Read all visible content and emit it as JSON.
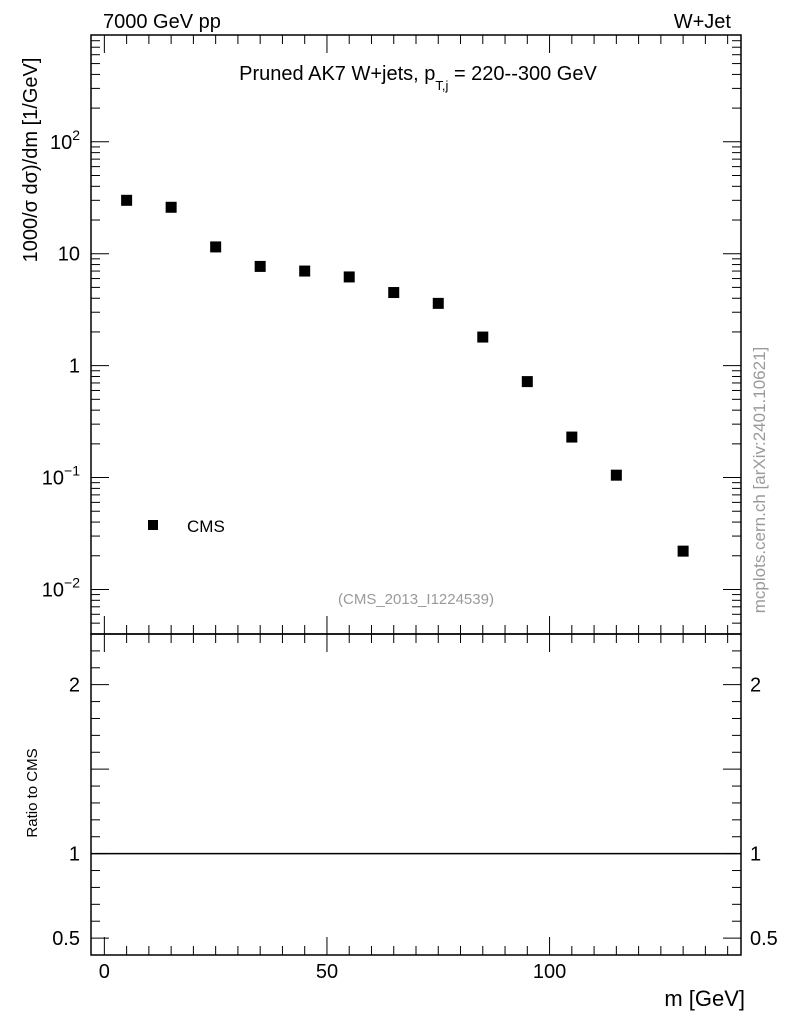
{
  "header": {
    "left": "7000 GeV pp",
    "right": "W+Jet"
  },
  "watermark": "mcplots.cern.ch [arXiv:2401.10621]",
  "analysis_id": "(CMS_2013_I1224539)",
  "chart_data": [
    {
      "type": "scatter",
      "panel": "main",
      "title_main": "Pruned AK7 W+jets, p",
      "title_sub": "T,j",
      "title_rest": " = 220--300 GeV",
      "ylabel": "1000/σ  dσ)/dm [1/GeV]",
      "xlabel": "m [GeV]",
      "xlim": [
        -3,
        143
      ],
      "ylim": [
        0.004,
        900
      ],
      "yscale": "log",
      "y_tick_labels": [
        {
          "value": 0.01,
          "base": "10",
          "exp": "−2"
        },
        {
          "value": 0.1,
          "base": "10",
          "exp": "−1"
        },
        {
          "value": 1,
          "base": "1",
          "exp": ""
        },
        {
          "value": 10,
          "base": "10",
          "exp": ""
        },
        {
          "value": 100,
          "base": "10",
          "exp": "2"
        }
      ],
      "legend": {
        "position": "bottom-left",
        "entries": [
          "CMS"
        ]
      },
      "series": [
        {
          "name": "CMS",
          "marker": "square",
          "color": "#000000",
          "x": [
            5,
            15,
            25,
            35,
            45,
            55,
            65,
            75,
            85,
            95,
            105,
            115,
            130
          ],
          "y": [
            30,
            26,
            11.5,
            7.7,
            7.0,
            6.2,
            4.5,
            3.6,
            1.8,
            0.72,
            0.23,
            0.105,
            0.022
          ]
        }
      ]
    },
    {
      "type": "line",
      "panel": "ratio",
      "ylabel": "Ratio to CMS",
      "xlabel": "m [GeV]",
      "xlim": [
        -3,
        143
      ],
      "ylim": [
        0.4,
        2.3
      ],
      "x_ticks": [
        0,
        50,
        100
      ],
      "y_ticks": [
        0.5,
        1,
        2
      ],
      "series": [
        {
          "name": "CMS",
          "x": [
            -3,
            143
          ],
          "y": [
            1,
            1
          ],
          "color": "#000000"
        }
      ]
    }
  ]
}
